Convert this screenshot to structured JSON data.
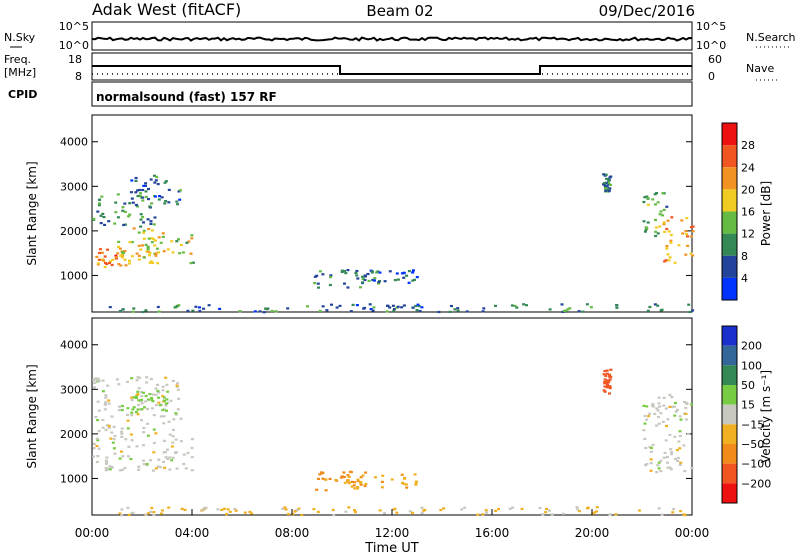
{
  "header": {
    "station": "Adak West (fitACF)",
    "beam": "Beam 02",
    "date": "09/Dec/2016"
  },
  "top_panels": {
    "nsky_label": "N.Sky",
    "nsearch_label": "N.Search",
    "noise_ticks_left": [
      "10^5",
      "10^0"
    ],
    "noise_ticks_right": [
      "10^5",
      "10^0"
    ],
    "freq_label_1": "Freq.",
    "freq_label_2": "[MHz]",
    "freq_ticks": [
      "18",
      "8"
    ],
    "nave_label": "Nave",
    "nave_ticks": [
      "60",
      "0"
    ],
    "cpid_label": "CPID",
    "cpid_text": "normalsound (fast) 157 RF"
  },
  "chart_data": [
    {
      "type": "heatmap",
      "panel": "power",
      "xlabel": "",
      "ylabel": "Slant Range [km]",
      "yticks": [
        "4000",
        "3000",
        "2000",
        "1000"
      ],
      "ylim": [
        180,
        4600
      ],
      "xlim": [
        0,
        24
      ],
      "colorbar_label": "Power [dB]",
      "colorbar_ticks": [
        "28",
        "24",
        "20",
        "16",
        "12",
        "8",
        "4"
      ],
      "colorbar_range": [
        0,
        30
      ],
      "colors": [
        "#0033ff",
        "#22449a",
        "#338855",
        "#66bb44",
        "#f0cc22",
        "#f29222",
        "#f05522",
        "#ee1111"
      ],
      "regions": [
        {
          "t0": 0.1,
          "t1": 1.2,
          "r0": 1200,
          "r1": 1650,
          "power": 22
        },
        {
          "t0": 1.0,
          "t1": 2.8,
          "r0": 1250,
          "r1": 2100,
          "power": 18
        },
        {
          "t0": 2.0,
          "t1": 4.0,
          "r0": 1300,
          "r1": 2000,
          "power": 16
        },
        {
          "t0": 0.0,
          "t1": 2.5,
          "r0": 2100,
          "r1": 2950,
          "power": 10
        },
        {
          "t0": 1.5,
          "t1": 3.5,
          "r0": 2600,
          "r1": 3300,
          "power": 7
        },
        {
          "t0": 8.8,
          "t1": 11.5,
          "r0": 750,
          "r1": 1150,
          "power": 9
        },
        {
          "t0": 10.5,
          "t1": 13.0,
          "r0": 850,
          "r1": 1150,
          "power": 6
        },
        {
          "t0": 22.0,
          "t1": 23.0,
          "r0": 1900,
          "r1": 2900,
          "power": 12
        },
        {
          "t0": 22.8,
          "t1": 24.0,
          "r0": 1300,
          "r1": 2400,
          "power": 20
        },
        {
          "t0": 20.4,
          "t1": 20.7,
          "r0": 2900,
          "r1": 3300,
          "power": 9
        },
        {
          "t0": 0.5,
          "t1": 24.0,
          "r0": 200,
          "r1": 380,
          "power": 8
        }
      ]
    },
    {
      "type": "heatmap",
      "panel": "velocity",
      "xlabel": "Time UT",
      "ylabel": "Slant Range [km]",
      "yticks": [
        "4000",
        "3000",
        "2000",
        "1000"
      ],
      "ylim": [
        180,
        4600
      ],
      "xlim": [
        0,
        24
      ],
      "xticks": [
        "00:00",
        "04:00",
        "08:00",
        "12:00",
        "16:00",
        "20:00",
        "00:00"
      ],
      "colorbar_label": "Velocity [m s⁻¹]",
      "colorbar_ticks": [
        "200",
        "100",
        "50",
        "15",
        "−15",
        "−50",
        "−100",
        "−200"
      ],
      "colors": [
        "#1a2fcc",
        "#336699",
        "#338855",
        "#77cc44",
        "#c8c8c0",
        "#f0b022",
        "#f08a1a",
        "#f05522",
        "#ee1111"
      ],
      "regions": [
        {
          "t0": 0.0,
          "t1": 4.0,
          "r0": 1200,
          "r1": 2200,
          "velocity": 0
        },
        {
          "t0": 0.0,
          "t1": 3.5,
          "r0": 2200,
          "r1": 3300,
          "velocity": 0
        },
        {
          "t0": 1.5,
          "t1": 3.0,
          "r0": 2400,
          "r1": 3000,
          "velocity": 30
        },
        {
          "t0": 8.8,
          "t1": 11.0,
          "r0": 750,
          "r1": 1200,
          "velocity": -60
        },
        {
          "t0": 10.0,
          "t1": 13.0,
          "r0": 800,
          "r1": 1150,
          "velocity": -40
        },
        {
          "t0": 22.0,
          "t1": 24.0,
          "r0": 1100,
          "r1": 2900,
          "velocity": 0
        },
        {
          "t0": 20.4,
          "t1": 20.7,
          "r0": 2900,
          "r1": 3500,
          "velocity": -150
        },
        {
          "t0": 0.5,
          "t1": 24.0,
          "r0": 200,
          "r1": 380,
          "velocity": -20
        }
      ]
    }
  ]
}
